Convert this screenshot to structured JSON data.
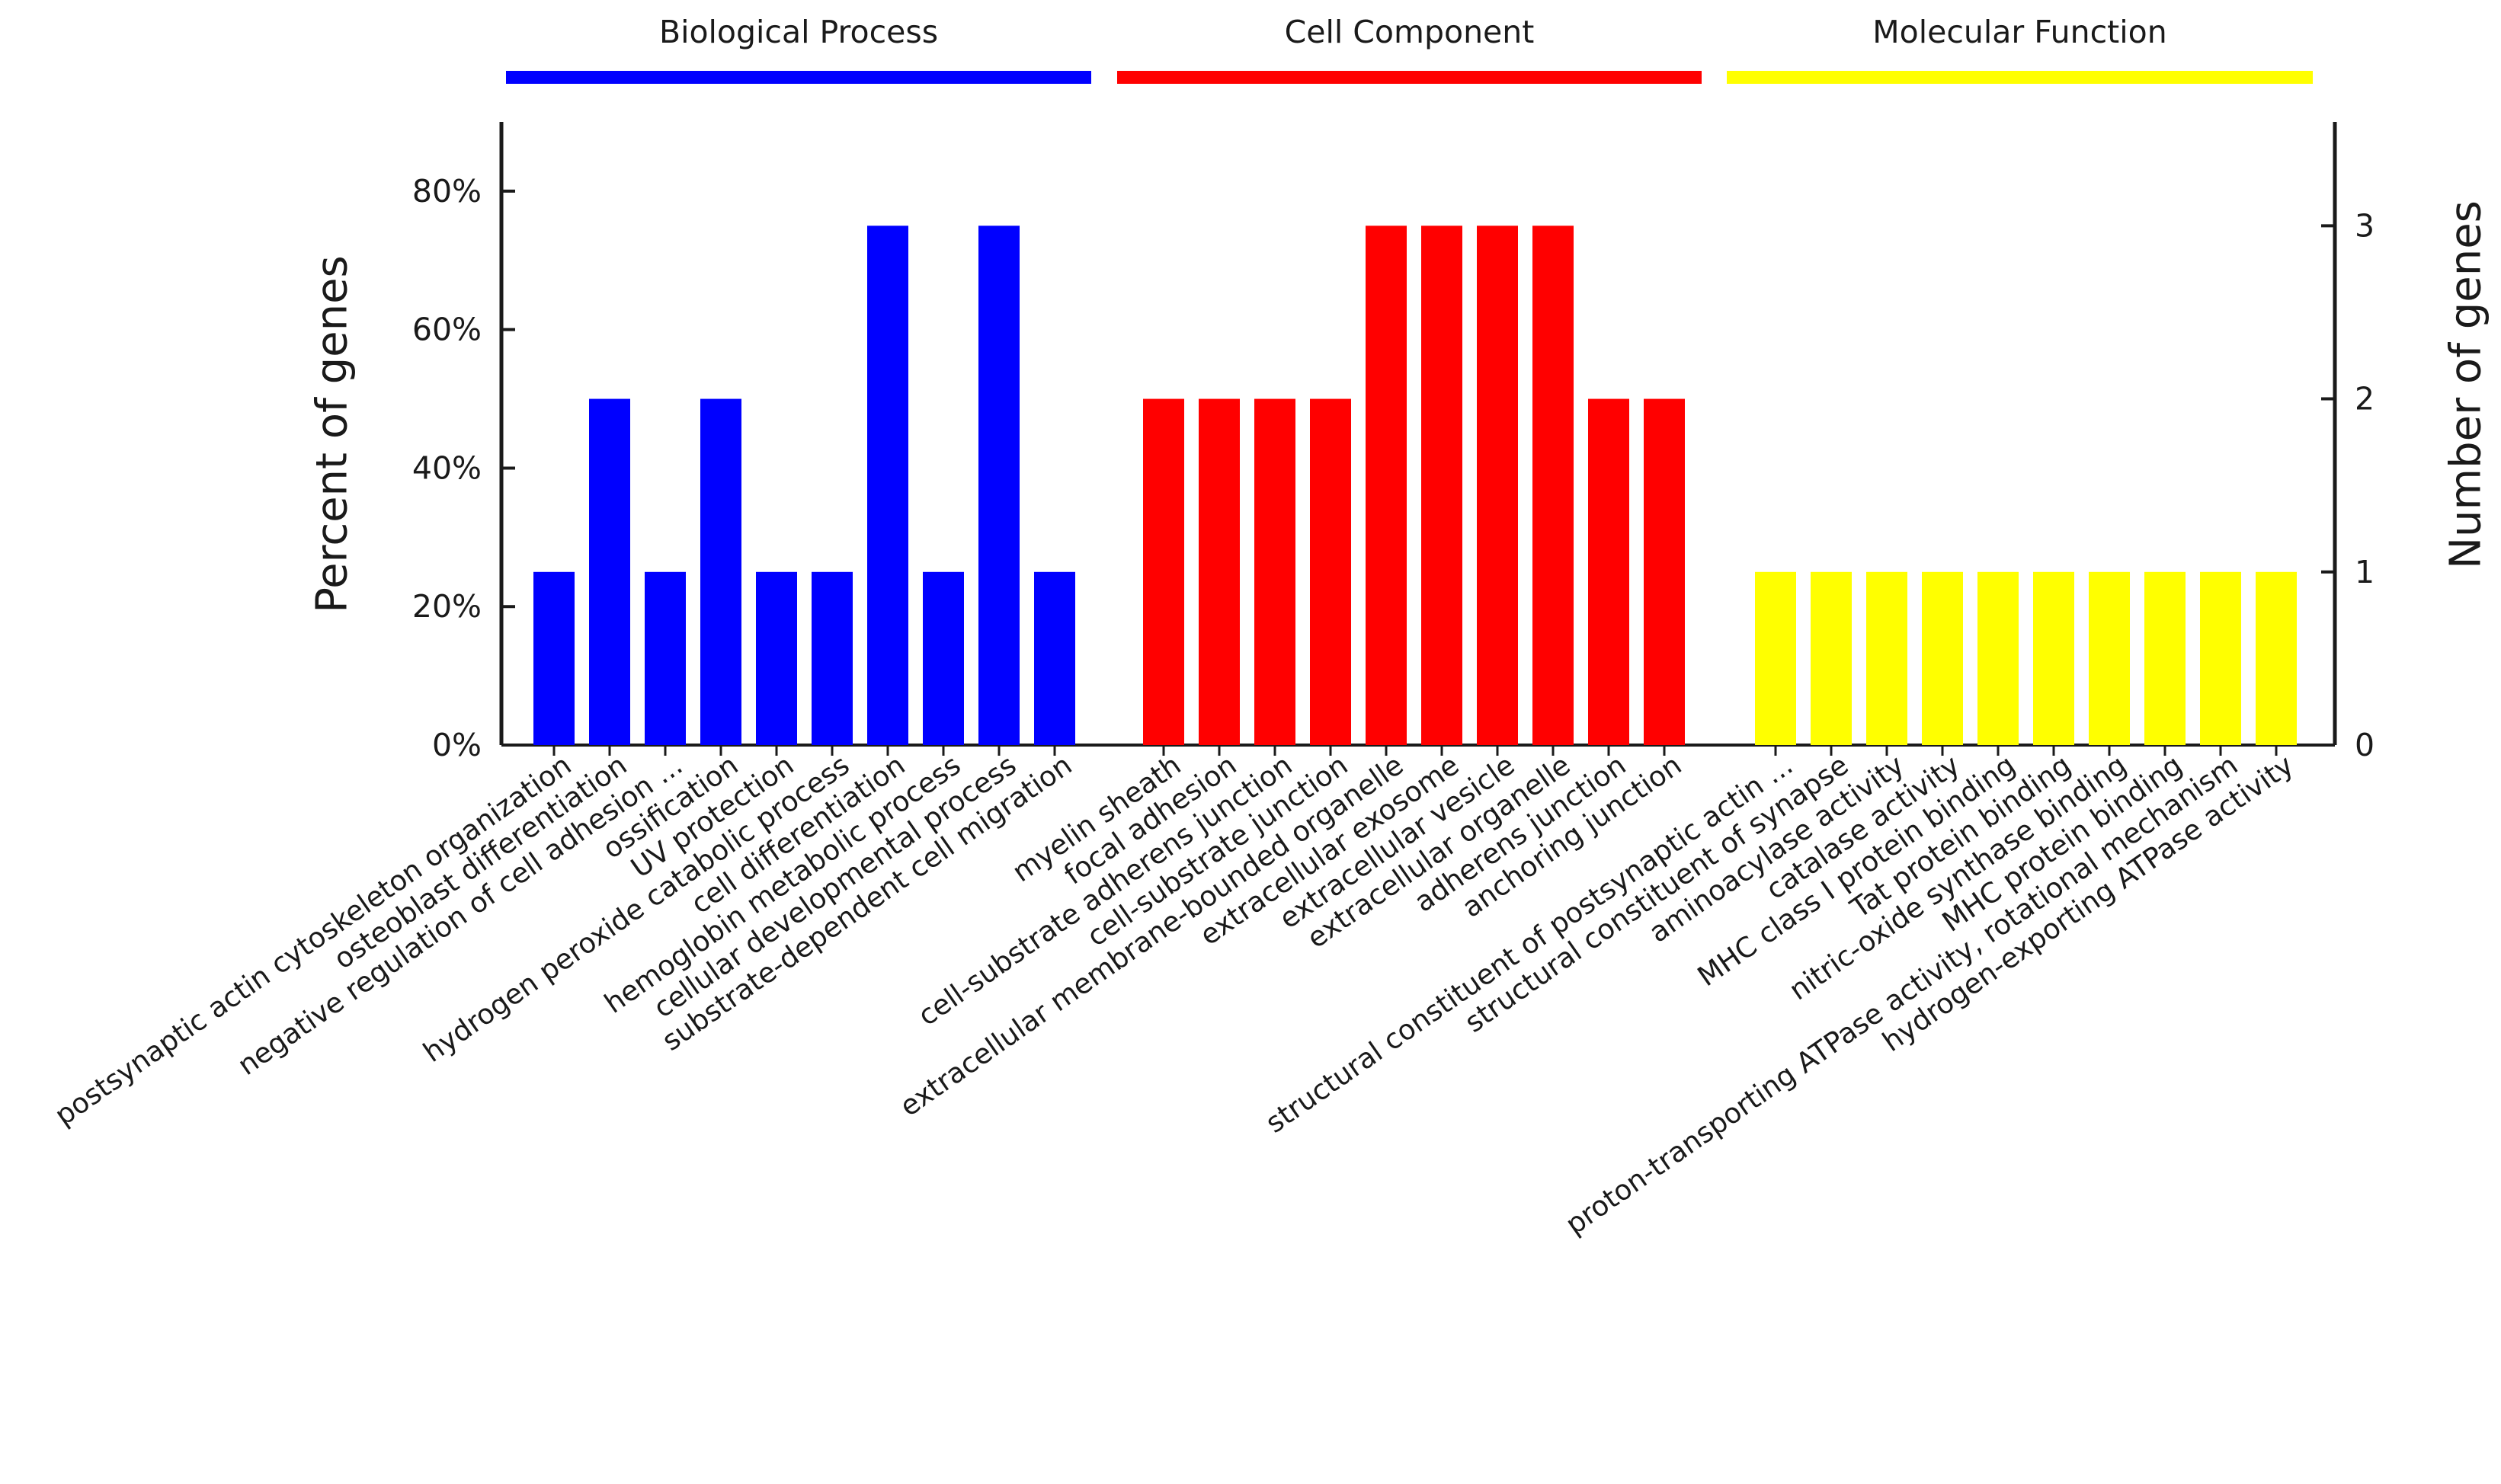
{
  "chart_data": {
    "type": "bar",
    "ylabel_left": "Percent of genes",
    "ylabel_right": "Number of genes",
    "y_left_ticks": [
      "0%",
      "20%",
      "40%",
      "60%",
      "80%"
    ],
    "y_left_tick_values": [
      0,
      20,
      40,
      60,
      80
    ],
    "y_left_range": [
      0,
      90
    ],
    "y_right_ticks": [
      "0",
      "1",
      "2",
      "3"
    ],
    "y_right_tick_values": [
      0,
      1,
      2,
      3
    ],
    "y_right_range": [
      0,
      3.6
    ],
    "grid": false,
    "groups": [
      {
        "name": "Biological Process",
        "color": "#0000ff",
        "categories": [
          "postsynaptic actin cytoskeleton organization",
          "osteoblast differentiation",
          "negative regulation of cell adhesion ...",
          "ossification",
          "UV protection",
          "hydrogen peroxide catabolic process",
          "cell differentiation",
          "hemoglobin metabolic process",
          "cellular developmental process",
          "substrate-dependent cell migration"
        ],
        "percent": [
          25,
          50,
          25,
          50,
          25,
          25,
          75,
          25,
          75,
          25
        ],
        "count": [
          1,
          2,
          1,
          2,
          1,
          1,
          3,
          1,
          3,
          1
        ]
      },
      {
        "name": "Cell Component",
        "color": "#ff0000",
        "categories": [
          "myelin sheath",
          "focal adhesion",
          "cell-substrate adherens junction",
          "cell-substrate junction",
          "extracellular membrane-bounded organelle",
          "extracellular exosome",
          "extracellular vesicle",
          "extracellular organelle",
          "adherens junction",
          "anchoring junction"
        ],
        "percent": [
          50,
          50,
          50,
          50,
          75,
          75,
          75,
          75,
          50,
          50
        ],
        "count": [
          2,
          2,
          2,
          2,
          3,
          3,
          3,
          3,
          2,
          2
        ]
      },
      {
        "name": "Molecular Function",
        "color": "#ffff00",
        "categories": [
          "structural constituent of postsynaptic actin ...",
          "structural constituent of synapse",
          "aminoacylase activity",
          "catalase activity",
          "MHC class I protein binding",
          "Tat protein binding",
          "nitric-oxide synthase binding",
          "MHC protein binding",
          "proton-transporting ATPase activity, rotational mechanism",
          "hydrogen-exporting ATPase activity"
        ],
        "percent": [
          25,
          25,
          25,
          25,
          25,
          25,
          25,
          25,
          25,
          25
        ],
        "count": [
          1,
          1,
          1,
          1,
          1,
          1,
          1,
          1,
          1,
          1
        ]
      }
    ]
  }
}
